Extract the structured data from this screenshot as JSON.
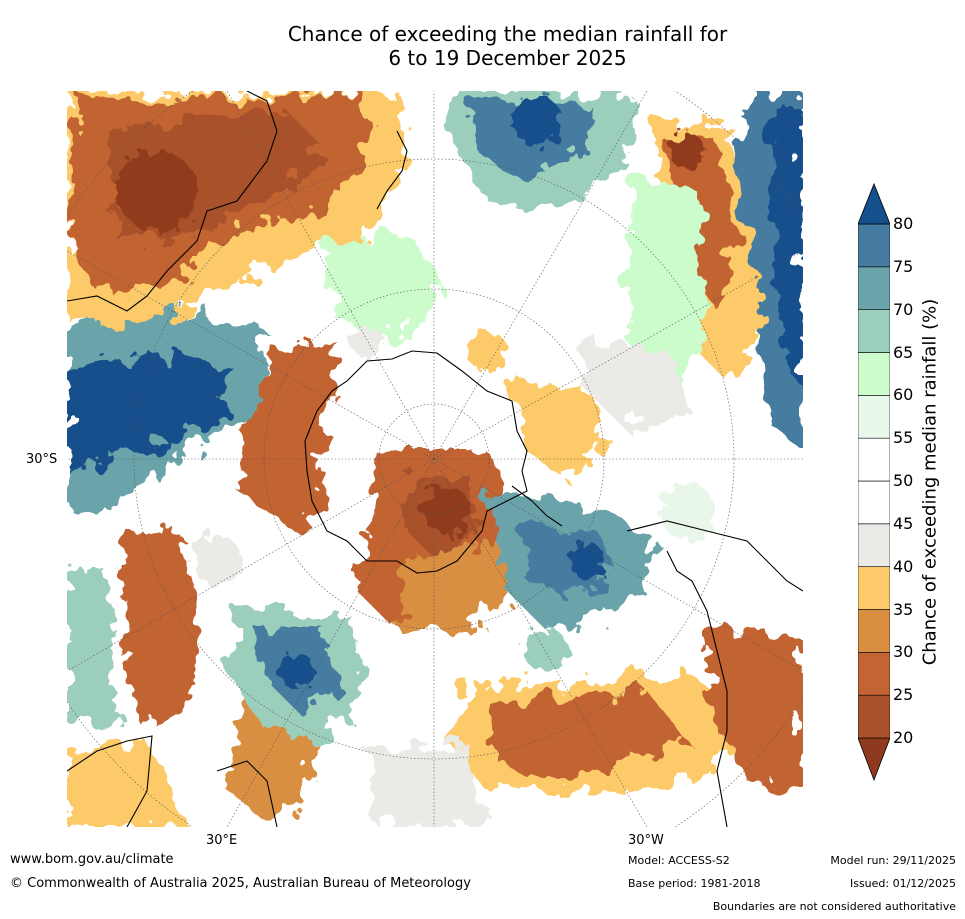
{
  "title_line1": "Chance of exceeding the median rainfall for",
  "title_line2": "6 to 19 December 2025",
  "map": {
    "lat_label": "30°S",
    "lon_labels": [
      "30°E",
      "30°W"
    ]
  },
  "colorbar": {
    "label": "Chance of exceeding median rainfall (%)",
    "ticks": [
      "20",
      "25",
      "30",
      "35",
      "40",
      "45",
      "50",
      "55",
      "60",
      "65",
      "70",
      "75",
      "80"
    ],
    "colors": [
      "#8f3a1e",
      "#a8512a",
      "#c26433",
      "#d88f42",
      "#fcca68",
      "#ebeae6",
      "#ffffff",
      "#ffffff",
      "#e9f6ea",
      "#ccfccc",
      "#9bcfbb",
      "#6aa4aa",
      "#457ba0",
      "#13508c"
    ]
  },
  "footer": {
    "url": "www.bom.gov.au/climate",
    "copyright": "© Commonwealth of Australia 2025, Australian Bureau of Meteorology",
    "model": "Model: ACCESS-S2",
    "base_period": "Base period: 1981-2018",
    "model_run": "Model run: 29/11/2025",
    "issued": "Issued: 01/12/2025",
    "disclaimer": "Boundaries are not considered authoritative"
  }
}
